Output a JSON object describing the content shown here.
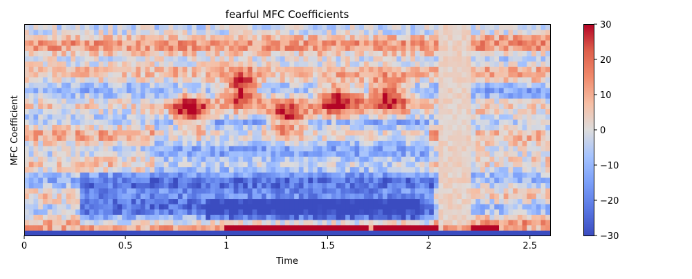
{
  "chart_data": {
    "type": "heatmap",
    "title": "fearful MFC Coefficients",
    "xlabel": "Time",
    "ylabel": "MFC Coefficient",
    "xlim": [
      0,
      2.6
    ],
    "x_ticks": [
      "0",
      "0.5",
      "1",
      "1.5",
      "2",
      "2.5"
    ],
    "x_tick_values": [
      0,
      0.5,
      1,
      1.5,
      2,
      2.5
    ],
    "n_coefficients": 40,
    "n_frames": 113,
    "colormap": "coolwarm",
    "clim": [
      -30,
      30
    ],
    "colorbar_ticks": [
      "30",
      "20",
      "10",
      "0",
      "−10",
      "−20",
      "−30"
    ],
    "colorbar_tick_values": [
      30,
      20,
      10,
      0,
      -10,
      -20,
      -30
    ],
    "features": {
      "bottom_row": "−30 across the whole clip",
      "second_row": "+30 from 1.0 to 1.2, 1.2 to 1.7, 1.7 to 2.05, 2.2 to 2.35",
      "strong_negative_band": "rows 3–11, 0.3–2.0",
      "strong_positive_curves": "rows 21–29, 0.75–1.95",
      "silent_region": "about 2.05–2.2, values near 0"
    }
  }
}
